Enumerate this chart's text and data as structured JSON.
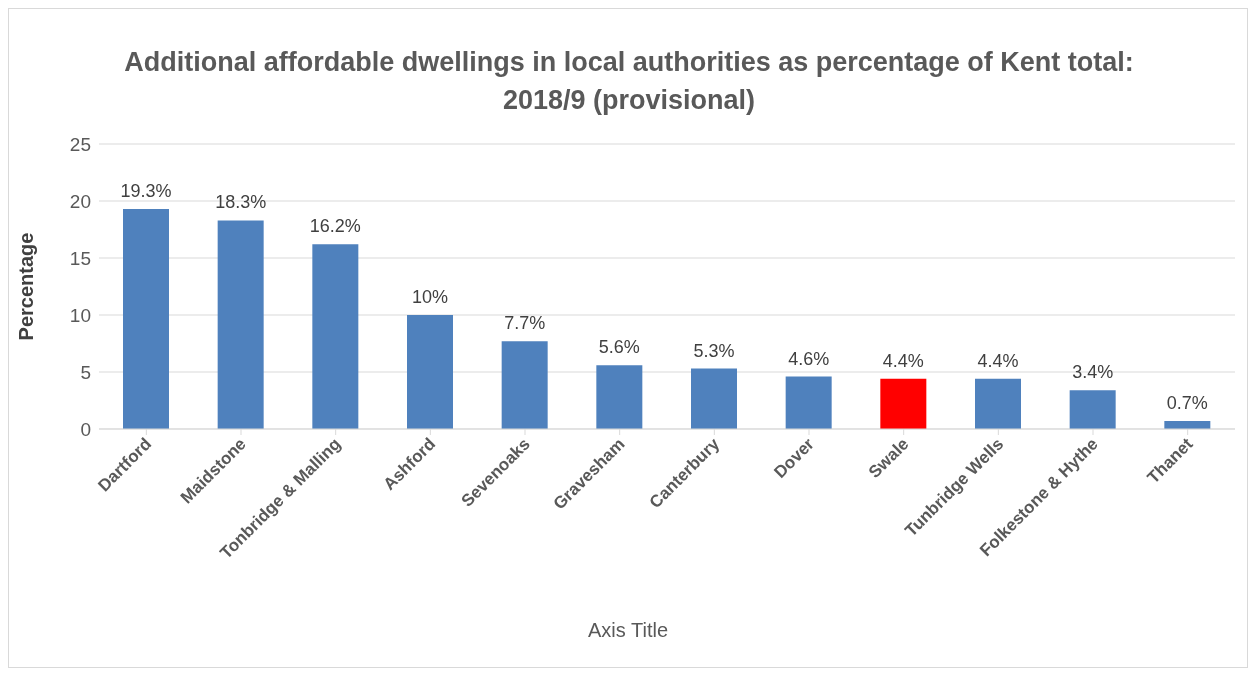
{
  "chart_data": {
    "type": "bar",
    "title": "Additional affordable dwellings in local authorities as percentage of Kent total: 2018/9 (provisional)",
    "xlabel": "Axis Title",
    "ylabel": "Percentage",
    "categories": [
      "Dartford",
      "Maidstone",
      "Tonbridge & Malling",
      "Ashford",
      "Sevenoaks",
      "Gravesham",
      "Canterbury",
      "Dover",
      "Swale",
      "Tunbridge Wells",
      "Folkestone & Hythe",
      "Thanet"
    ],
    "values": [
      19.3,
      18.3,
      16.2,
      10,
      7.7,
      5.6,
      5.3,
      4.6,
      4.4,
      4.4,
      3.4,
      0.7
    ],
    "colors": [
      "#4f81bd",
      "#4f81bd",
      "#4f81bd",
      "#4f81bd",
      "#4f81bd",
      "#4f81bd",
      "#4f81bd",
      "#4f81bd",
      "#ff0000",
      "#4f81bd",
      "#4f81bd",
      "#4f81bd"
    ],
    "value_labels": [
      "19.3%",
      "18.3%",
      "16.2%",
      "10%",
      "7.7%",
      "5.6%",
      "5.3%",
      "4.6%",
      "4.4%",
      "4.4%",
      "3.4%",
      "0.7%"
    ],
    "ylim": [
      0,
      25
    ],
    "yticks": [
      0,
      5,
      10,
      15,
      20,
      25
    ],
    "grid": "y",
    "legend": false
  }
}
